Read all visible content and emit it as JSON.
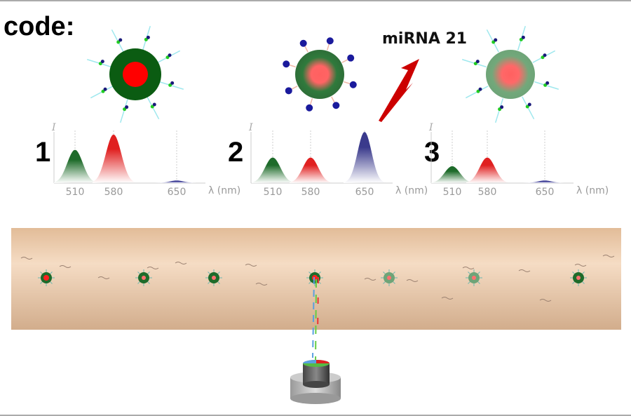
{
  "heading": "code:",
  "target_label": "miRNA 21",
  "colors": {
    "green": "#0b5c12",
    "red": "#ff0000",
    "blue": "#1a1a8c",
    "vessel": "#e8c3a0"
  },
  "chart_data": [
    {
      "type": "area",
      "panel_label": "1",
      "ylabel": "I",
      "xlabel": "λ (nm)",
      "x_ticks": [
        "510",
        "580",
        "650"
      ],
      "series": [
        {
          "x": 510,
          "y": 0.65,
          "color": "#1e6b2a"
        },
        {
          "x": 580,
          "y": 0.95,
          "color": "#e02020"
        },
        {
          "x": 650,
          "y": 0.05,
          "color": "#2a2a8c"
        }
      ]
    },
    {
      "type": "area",
      "panel_label": "2",
      "ylabel": "I",
      "xlabel": "λ (nm)",
      "x_ticks": [
        "510",
        "580",
        "650"
      ],
      "series": [
        {
          "x": 510,
          "y": 0.5,
          "color": "#1e6b2a"
        },
        {
          "x": 580,
          "y": 0.5,
          "color": "#e02020"
        },
        {
          "x": 650,
          "y": 1.0,
          "color": "#3a3a8c"
        }
      ]
    },
    {
      "type": "area",
      "panel_label": "3",
      "ylabel": "I",
      "xlabel": "λ (nm)",
      "x_ticks": [
        "510",
        "580",
        "650"
      ],
      "series": [
        {
          "x": 510,
          "y": 0.33,
          "color": "#1e6b2a"
        },
        {
          "x": 580,
          "y": 0.5,
          "color": "#e02020"
        },
        {
          "x": 650,
          "y": 0.05,
          "color": "#2a2a8c"
        }
      ]
    }
  ]
}
